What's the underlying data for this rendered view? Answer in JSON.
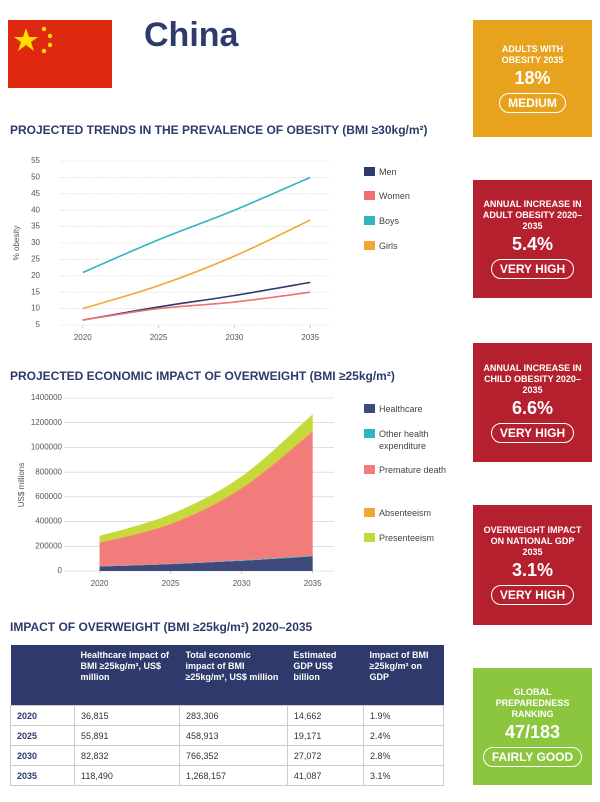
{
  "header": {
    "title": "China"
  },
  "chart_data": [
    {
      "type": "line",
      "title": "PROJECTED TRENDS IN THE PREVALENCE OF OBESITY (BMI ≥30kg/m²)",
      "y_label": "% obesity",
      "x": [
        2020,
        2025,
        2030,
        2035
      ],
      "xlim": [
        2018.5,
        2036.3
      ],
      "xticks": [
        2020,
        2025,
        2030,
        2035
      ],
      "ylim": [
        5,
        55
      ],
      "yticks": [
        5,
        10,
        15,
        20,
        25,
        30,
        35,
        40,
        45,
        50,
        55
      ],
      "grid": true,
      "series": [
        {
          "name": "Men",
          "color": "#2e3a6e",
          "values": [
            6.5,
            10.5,
            14,
            18
          ]
        },
        {
          "name": "Women",
          "color": "#f07070",
          "values": [
            6.5,
            10,
            12,
            15
          ]
        },
        {
          "name": "Boys",
          "color": "#2fb5c0",
          "values": [
            21,
            31,
            40,
            50
          ]
        },
        {
          "name": "Girls",
          "color": "#f0a830",
          "values": [
            10,
            17,
            26,
            37
          ]
        }
      ]
    },
    {
      "type": "area",
      "stacked": true,
      "title": "PROJECTED ECONOMIC IMPACT OF OVERWEIGHT (BMI ≥25kg/m²)",
      "y_label": "US$ millions",
      "x": [
        2020,
        2025,
        2030,
        2035
      ],
      "xlim": [
        2017.5,
        2036.5
      ],
      "xticks": [
        2020,
        2025,
        2030,
        2035
      ],
      "ylim": [
        0,
        1400000
      ],
      "yticks": [
        0,
        200000,
        400000,
        600000,
        800000,
        1000000,
        1200000,
        1400000
      ],
      "grid": true,
      "series": [
        {
          "name": "Healthcare",
          "color": "#3d4a7a",
          "values": [
            36815,
            55891,
            82832,
            118490
          ]
        },
        {
          "name": "Other health expenditure",
          "color": "#2bb6c0",
          "values": [
            2000,
            3000,
            4000,
            6000
          ]
        },
        {
          "name": "Premature death",
          "color": "#f27b7b",
          "values": [
            190000,
            320000,
            580000,
            1000000
          ]
        },
        {
          "name": "Absenteeism",
          "color": "#f0a830",
          "values": [
            5000,
            7000,
            9000,
            14000
          ]
        },
        {
          "name": "Presenteeism",
          "color": "#c6d93a",
          "values": [
            50000,
            73000,
            90000,
            130000
          ]
        }
      ]
    }
  ],
  "table": {
    "title": "IMPACT OF OVERWEIGHT (BMI ≥25kg/m²) 2020–2035",
    "header": [
      "Healthcare impact of BMI ≥25kg/m², US$ million",
      "Total economic impact of BMI ≥25kg/m², US$ million",
      "Estimated GDP US$ billion",
      "Impact of BMI ≥25kg/m² on GDP"
    ],
    "rows": [
      [
        "2020",
        "36,815",
        "283,306",
        "14,662",
        "1.9%"
      ],
      [
        "2025",
        "55,891",
        "458,913",
        "19,171",
        "2.4%"
      ],
      [
        "2030",
        "82,832",
        "766,352",
        "27,072",
        "2.8%"
      ],
      [
        "2035",
        "118,490",
        "1,268,157",
        "41,087",
        "3.1%"
      ]
    ]
  },
  "panels": [
    {
      "label": "ADULTS WITH OBESITY 2035",
      "value": "18%",
      "rating": "MEDIUM",
      "color": "#e8a31e"
    },
    {
      "label": "ANNUAL INCREASE IN ADULT OBESITY 2020–2035",
      "value": "5.4%",
      "rating": "VERY HIGH",
      "color": "#b5202e"
    },
    {
      "label": "ANNUAL INCREASE IN CHILD OBESITY 2020–2035",
      "value": "6.6%",
      "rating": "VERY HIGH",
      "color": "#b5202e"
    },
    {
      "label": "OVERWEIGHT IMPACT ON NATIONAL GDP 2035",
      "value": "3.1%",
      "rating": "VERY HIGH",
      "color": "#b5202e"
    },
    {
      "label": "GLOBAL PREPAREDNESS RANKING",
      "value": "47/183",
      "rating": "FAIRLY GOOD",
      "color": "#8cc63f"
    }
  ]
}
